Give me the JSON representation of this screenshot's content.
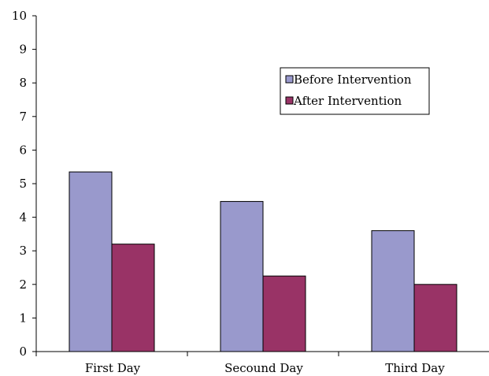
{
  "chart_data": {
    "type": "bar",
    "categories": [
      "First Day",
      "Secound Day",
      "Third Day"
    ],
    "series": [
      {
        "name": "Before Intervention",
        "values": [
          5.35,
          4.47,
          3.6
        ],
        "color": "#9999cc"
      },
      {
        "name": "After Intervention",
        "values": [
          3.2,
          2.25,
          2.0
        ],
        "color": "#993366"
      }
    ],
    "yticks": [
      0,
      1,
      2,
      3,
      4,
      5,
      6,
      7,
      8,
      9,
      10
    ],
    "ylim": [
      0,
      10
    ],
    "grid": false,
    "legend_position": "upper-right inside plot"
  }
}
